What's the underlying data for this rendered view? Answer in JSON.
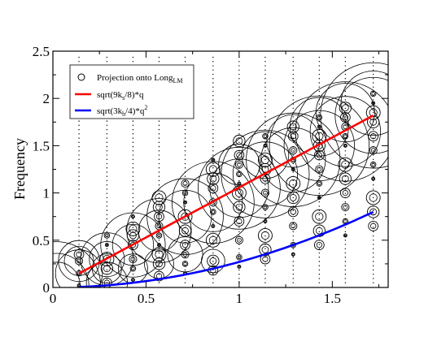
{
  "chart_data": {
    "type": "scatter",
    "ylabel": "Frequency",
    "xlim": [
      0,
      1.8
    ],
    "ylim": [
      0,
      2.5
    ],
    "x_ticks": [
      {
        "value": 0,
        "label": "0"
      },
      {
        "value": 0.5,
        "label": "0.5"
      },
      {
        "value": 1,
        "label": "1"
      },
      {
        "value": 1.5,
        "label": "1.5"
      }
    ],
    "y_ticks": [
      {
        "value": 0,
        "label": "0"
      },
      {
        "value": 0.5,
        "label": "0.5"
      },
      {
        "value": 1,
        "label": "1"
      },
      {
        "value": 1.5,
        "label": "1.5"
      },
      {
        "value": 2,
        "label": "2"
      },
      {
        "value": 2.5,
        "label": "2.5"
      }
    ],
    "grid": false,
    "legend_placement": "top-left",
    "legend": [
      {
        "main": "Projection onto Long",
        "sub": "LM",
        "marker": "circle",
        "color": "#000000"
      },
      {
        "main": "sqrt(9k",
        "sub": "s",
        "tail": "/8)*q",
        "marker": "line",
        "color": "#ff0000"
      },
      {
        "main": "sqrt(3k",
        "sub": "b",
        "tail": "/4)*q",
        "sup": "2",
        "marker": "line",
        "color": "#0000ff"
      }
    ],
    "curves": [
      {
        "name": "sqrt(9ks/8)*q",
        "color": "#ff0000",
        "function": "linear",
        "coefficient": 1.058,
        "x_range": [
          0.14,
          1.72
        ]
      },
      {
        "name": "sqrt(3kb/4)*q^2",
        "color": "#0000ff",
        "function": "quadratic",
        "coefficient": 0.27,
        "x_range": [
          0.14,
          1.72
        ]
      }
    ],
    "q_values": [
      0.14,
      0.29,
      0.43,
      0.57,
      0.71,
      0.86,
      1.0,
      1.14,
      1.29,
      1.43,
      1.57,
      1.72
    ],
    "mode_frequencies_per_q": [
      [
        0.02,
        0.15,
        0.28,
        0.35
      ],
      [
        0.05,
        0.2,
        0.3,
        0.45,
        0.55
      ],
      [
        0.08,
        0.2,
        0.3,
        0.45,
        0.55,
        0.62,
        0.75
      ],
      [
        0.12,
        0.25,
        0.35,
        0.45,
        0.55,
        0.65,
        0.75,
        0.85,
        0.95
      ],
      [
        0.15,
        0.25,
        0.35,
        0.45,
        0.6,
        0.75,
        0.9,
        1.0,
        1.1
      ],
      [
        0.18,
        0.28,
        0.5,
        0.65,
        0.8,
        0.9,
        1.05,
        1.15,
        1.25,
        1.35
      ],
      [
        0.22,
        0.32,
        0.5,
        0.7,
        0.85,
        1.0,
        1.1,
        1.2,
        1.3,
        1.4,
        1.55
      ],
      [
        0.3,
        0.4,
        0.55,
        0.7,
        0.85,
        1.0,
        1.15,
        1.25,
        1.35,
        1.5,
        1.6
      ],
      [
        0.35,
        0.45,
        0.65,
        0.8,
        0.95,
        1.1,
        1.25,
        1.35,
        1.45,
        1.6,
        1.7
      ],
      [
        0.45,
        0.6,
        0.75,
        0.95,
        1.1,
        1.25,
        1.4,
        1.5,
        1.6,
        1.7,
        1.8
      ],
      [
        0.55,
        0.7,
        0.85,
        1.0,
        1.15,
        1.3,
        1.5,
        1.6,
        1.7,
        1.8,
        1.9
      ],
      [
        0.65,
        0.8,
        0.95,
        1.15,
        1.3,
        1.45,
        1.6,
        1.75,
        1.85,
        1.95,
        2.05
      ]
    ],
    "large_projection_circles": [
      {
        "x": 0.02,
        "y": 0.02,
        "r": 0.75
      },
      {
        "x": 0.02,
        "y": 0.02,
        "r": 0.55
      },
      {
        "x": 0.02,
        "y": 0.02,
        "r": 0.4
      },
      {
        "x": 0.14,
        "y": 0.15,
        "r": 0.4
      },
      {
        "x": 0.14,
        "y": 0.28,
        "r": 0.35
      },
      {
        "x": 0.14,
        "y": 0.28,
        "r": 0.25
      },
      {
        "x": 0.29,
        "y": 0.3,
        "r": 0.45
      },
      {
        "x": 0.29,
        "y": 0.3,
        "r": 0.3
      },
      {
        "x": 0.29,
        "y": 0.05,
        "r": 0.35
      },
      {
        "x": 0.29,
        "y": 0.2,
        "r": 0.25
      },
      {
        "x": 0.43,
        "y": 0.45,
        "r": 0.55
      },
      {
        "x": 0.43,
        "y": 0.45,
        "r": 0.35
      },
      {
        "x": 0.43,
        "y": 0.2,
        "r": 0.25
      },
      {
        "x": 0.57,
        "y": 0.6,
        "r": 0.55
      },
      {
        "x": 0.57,
        "y": 0.6,
        "r": 0.35
      },
      {
        "x": 0.57,
        "y": 0.25,
        "r": 0.25
      },
      {
        "x": 0.71,
        "y": 0.75,
        "r": 0.65
      },
      {
        "x": 0.71,
        "y": 0.75,
        "r": 0.45
      },
      {
        "x": 0.71,
        "y": 0.35,
        "r": 0.3
      },
      {
        "x": 0.86,
        "y": 0.9,
        "r": 0.7
      },
      {
        "x": 0.86,
        "y": 0.9,
        "r": 0.5
      },
      {
        "x": 0.86,
        "y": 0.28,
        "r": 0.2
      },
      {
        "x": 1.0,
        "y": 1.05,
        "r": 0.7
      },
      {
        "x": 1.0,
        "y": 1.05,
        "r": 0.5
      },
      {
        "x": 1.0,
        "y": 1.3,
        "r": 0.35
      },
      {
        "x": 1.14,
        "y": 1.2,
        "r": 0.75
      },
      {
        "x": 1.14,
        "y": 1.2,
        "r": 0.55
      },
      {
        "x": 1.14,
        "y": 1.4,
        "r": 0.4
      },
      {
        "x": 1.29,
        "y": 1.35,
        "r": 0.8
      },
      {
        "x": 1.29,
        "y": 1.35,
        "r": 0.55
      },
      {
        "x": 1.29,
        "y": 1.55,
        "r": 0.45
      },
      {
        "x": 1.43,
        "y": 1.5,
        "r": 0.85
      },
      {
        "x": 1.43,
        "y": 1.5,
        "r": 0.6
      },
      {
        "x": 1.43,
        "y": 1.7,
        "r": 0.5
      },
      {
        "x": 1.57,
        "y": 1.65,
        "r": 0.85
      },
      {
        "x": 1.57,
        "y": 1.65,
        "r": 0.6
      },
      {
        "x": 1.57,
        "y": 1.85,
        "r": 0.5
      },
      {
        "x": 1.72,
        "y": 1.82,
        "r": 0.9
      },
      {
        "x": 1.72,
        "y": 1.82,
        "r": 0.65
      },
      {
        "x": 1.72,
        "y": 1.95,
        "r": 0.55
      }
    ]
  }
}
